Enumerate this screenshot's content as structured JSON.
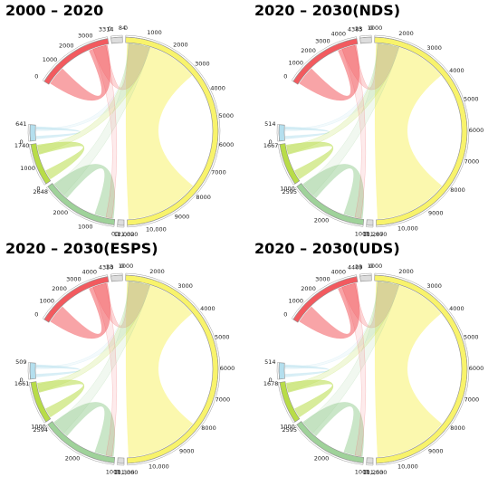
{
  "panels": [
    {
      "title": "2000 – 2020",
      "groups": [
        {
          "name": "red",
          "color": "#f25a5f",
          "total": 3314,
          "labels": [
            "0",
            "1000",
            "2000",
            "3000",
            "3314"
          ]
        },
        {
          "name": "white1",
          "color": "#dddddd",
          "total": 84,
          "labels": [
            "0",
            "84"
          ]
        },
        {
          "name": "yellow",
          "color": "#f8f36b",
          "total": 11000,
          "labels": [
            "0",
            "1000",
            "2000",
            "3000",
            "4000",
            "5000",
            "6000",
            "7000",
            "8000",
            "9000",
            "10,000",
            "11,000"
          ]
        },
        {
          "name": "white2",
          "color": "#dddddd",
          "total": 32,
          "labels": [
            "12,032",
            "0"
          ]
        },
        {
          "name": "green",
          "color": "#9fd29a",
          "total": 2648,
          "labels": [
            "0",
            "1000",
            "2000",
            "2648"
          ]
        },
        {
          "name": "lime",
          "color": "#b8dc48",
          "total": 1740,
          "labels": [
            "0",
            "1000",
            "1740"
          ]
        },
        {
          "name": "cyan",
          "color": "#b4dfee",
          "total": 641,
          "labels": [
            "0",
            "641"
          ]
        }
      ]
    },
    {
      "title": "2020 – 2030(NDS)",
      "groups": [
        {
          "name": "red",
          "color": "#f25a5f",
          "total": 4385,
          "labels": [
            "0",
            "1000",
            "2000",
            "3000",
            "4000",
            "4385"
          ]
        },
        {
          "name": "white1",
          "color": "#dddddd",
          "total": 23,
          "labels": [
            "23",
            "0"
          ]
        },
        {
          "name": "yellow",
          "color": "#f8f36b",
          "total": 11000,
          "labels": [
            "1000",
            "2000",
            "3000",
            "4000",
            "5000",
            "6000",
            "7000",
            "8000",
            "9000",
            "10,000",
            "11,000"
          ]
        },
        {
          "name": "white2",
          "color": "#dddddd",
          "total": 287,
          "labels": [
            "11,287",
            "0"
          ]
        },
        {
          "name": "green",
          "color": "#9fd29a",
          "total": 2595,
          "labels": [
            "1000",
            "2000",
            "2595"
          ]
        },
        {
          "name": "lime",
          "color": "#b8dc48",
          "total": 1667,
          "labels": [
            "1000",
            "1667"
          ]
        },
        {
          "name": "cyan",
          "color": "#b4dfee",
          "total": 514,
          "labels": [
            "0",
            "514"
          ]
        }
      ]
    },
    {
      "title": "2020 – 2030(ESPS)",
      "groups": [
        {
          "name": "red",
          "color": "#f25a5f",
          "total": 4350,
          "labels": [
            "0",
            "1000",
            "2000",
            "3000",
            "4000",
            "4350"
          ]
        },
        {
          "name": "white1",
          "color": "#dddddd",
          "total": 23,
          "labels": [
            "23",
            "0"
          ]
        },
        {
          "name": "yellow",
          "color": "#f8f36b",
          "total": 11000,
          "labels": [
            "1000",
            "2000",
            "3000",
            "4000",
            "5000",
            "6000",
            "7000",
            "8000",
            "9000",
            "10,000",
            "11,000"
          ]
        },
        {
          "name": "white2",
          "color": "#dddddd",
          "total": 336,
          "labels": [
            "11,336",
            "0"
          ]
        },
        {
          "name": "green",
          "color": "#9fd29a",
          "total": 2594,
          "labels": [
            "1000",
            "2000",
            "2594"
          ]
        },
        {
          "name": "lime",
          "color": "#b8dc48",
          "total": 1661,
          "labels": [
            "1000",
            "1661"
          ]
        },
        {
          "name": "cyan",
          "color": "#b4dfee",
          "total": 509,
          "labels": [
            "0",
            "509"
          ]
        }
      ]
    },
    {
      "title": "2020 – 2030(UDS)",
      "groups": [
        {
          "name": "red",
          "color": "#f25a5f",
          "total": 4409,
          "labels": [
            "0",
            "1000",
            "2000",
            "3000",
            "4000",
            "4409"
          ]
        },
        {
          "name": "white1",
          "color": "#dddddd",
          "total": 23,
          "labels": [
            "23",
            "0"
          ]
        },
        {
          "name": "yellow",
          "color": "#f8f36b",
          "total": 11000,
          "labels": [
            "1000",
            "2000",
            "3000",
            "4000",
            "5000",
            "6000",
            "7000",
            "8000",
            "9000",
            "10,000",
            "11,000"
          ]
        },
        {
          "name": "white2",
          "color": "#dddddd",
          "total": 253,
          "labels": [
            "11,253",
            "0"
          ]
        },
        {
          "name": "green",
          "color": "#9fd29a",
          "total": 2595,
          "labels": [
            "1000",
            "2000",
            "2595"
          ]
        },
        {
          "name": "lime",
          "color": "#b8dc48",
          "total": 1678,
          "labels": [
            "1000",
            "1678"
          ]
        },
        {
          "name": "cyan",
          "color": "#b4dfee",
          "total": 514,
          "labels": [
            "0",
            "514"
          ]
        }
      ]
    }
  ]
}
